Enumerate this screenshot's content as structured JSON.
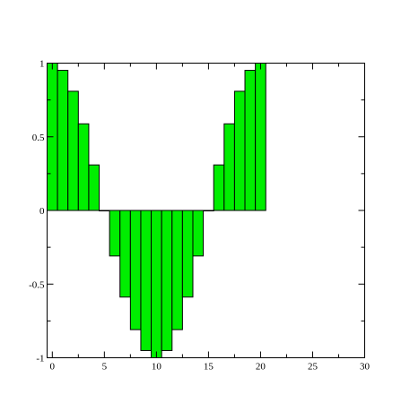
{
  "chart_data": {
    "type": "bar",
    "title": "",
    "xlabel": "",
    "ylabel": "",
    "bar_color": "#00ee00",
    "edge_color": "#000000",
    "bar_width": 1,
    "xlim": [
      -0.5,
      30
    ],
    "ylim": [
      -1,
      1
    ],
    "x_ticks": [
      "0",
      "5",
      "10",
      "15",
      "20",
      "25",
      "30"
    ],
    "y_ticks": [
      "-1",
      "-0.5",
      "0",
      "0.5",
      "1"
    ],
    "x": [
      0,
      1,
      2,
      3,
      4,
      5,
      6,
      7,
      8,
      9,
      10,
      11,
      12,
      13,
      14,
      15,
      16,
      17,
      18,
      19,
      20
    ],
    "values": [
      1,
      0.951,
      0.809,
      0.588,
      0.309,
      0,
      -0.309,
      -0.588,
      -0.809,
      -0.951,
      -1,
      -0.951,
      -0.809,
      -0.588,
      -0.309,
      0,
      0.309,
      0.588,
      0.809,
      0.951,
      1
    ]
  }
}
